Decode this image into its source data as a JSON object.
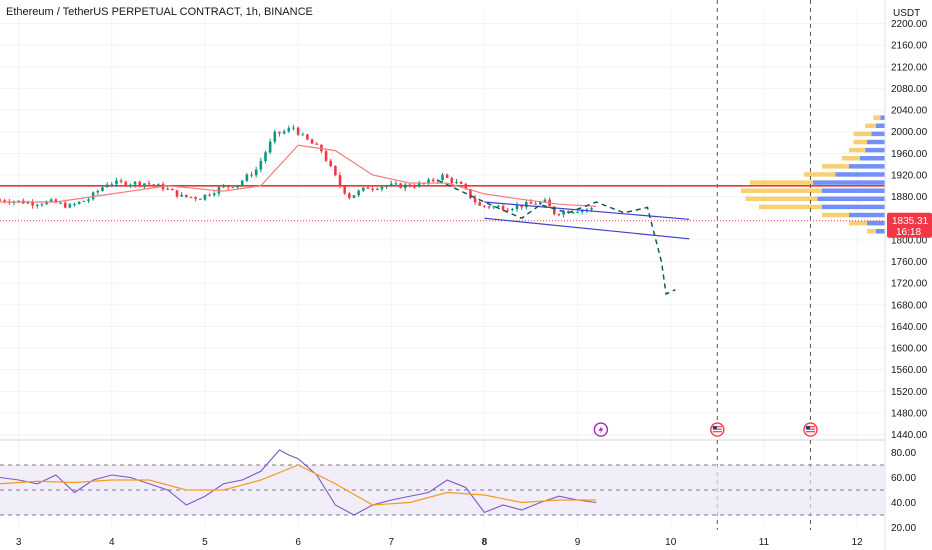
{
  "header": {
    "title": "Ethereum / TetherUS PERPETUAL CONTRACT, 1h, BINANCE",
    "currency": "USDT"
  },
  "price_tag": {
    "price": "1835.31",
    "countdown": "16:18",
    "color": "#f23645"
  },
  "colors": {
    "up": "#089981",
    "down": "#f23645",
    "ma": "#f57c7c",
    "resistance": "#e53935",
    "channel": "#3f3fd6",
    "projection": "#0e5c55",
    "rsi": "#7e57c2",
    "rsi_ma": "#f59c1a",
    "rsi_band": "#ede7f6",
    "vp_buy": "#5b7cf5",
    "vp_sell": "#f7c85a",
    "grid": "#f0f3fa"
  },
  "icons": [
    "lightning-event-icon",
    "us-flag-event-icon",
    "us-flag-event-icon"
  ],
  "chart_data": [
    {
      "type": "candlestick",
      "symbol": "Ethereum / TetherUS PERPETUAL CONTRACT",
      "interval": "1h",
      "exchange": "BINANCE",
      "y_axis": {
        "unit": "USDT",
        "ticks": [
          "2200.00",
          "2160.00",
          "2120.00",
          "2080.00",
          "2040.00",
          "2000.00",
          "1960.00",
          "1920.00",
          "1880.00",
          "1800.00",
          "1760.00",
          "1720.00",
          "1680.00",
          "1640.00",
          "1600.00",
          "1560.00",
          "1520.00",
          "1480.00",
          "1440.00"
        ],
        "range": [
          1430,
          2225
        ]
      },
      "x_axis": {
        "ticks": [
          "3",
          "4",
          "5",
          "6",
          "7",
          "8",
          "9",
          "10",
          "11",
          "12"
        ],
        "range": [
          2.8,
          12.3
        ]
      },
      "close_series": {
        "x": [
          2.8,
          3.0,
          3.2,
          3.4,
          3.6,
          3.8,
          4.0,
          4.2,
          4.4,
          4.6,
          4.8,
          5.0,
          5.2,
          5.4,
          5.6,
          5.8,
          5.9,
          6.0,
          6.1,
          6.3,
          6.5,
          6.6,
          6.8,
          7.0,
          7.2,
          7.4,
          7.6,
          7.8,
          7.9,
          8.0,
          8.1,
          8.3,
          8.5,
          8.7,
          8.8,
          9.0,
          9.2
        ],
        "y": [
          1874,
          1872,
          1868,
          1870,
          1862,
          1876,
          1905,
          1905,
          1905,
          1897,
          1880,
          1878,
          1895,
          1903,
          1930,
          1995,
          2000,
          2008,
          1990,
          1965,
          1900,
          1880,
          1897,
          1900,
          1900,
          1903,
          1918,
          1900,
          1880,
          1862,
          1862,
          1860,
          1865,
          1870,
          1850,
          1855,
          1857
        ]
      },
      "ma_series": {
        "x": [
          2.8,
          3.4,
          4.0,
          4.6,
          5.2,
          5.6,
          6.0,
          6.4,
          6.8,
          7.2,
          7.6,
          8.0,
          8.4,
          8.8,
          9.2
        ],
        "y": [
          1870,
          1870,
          1885,
          1900,
          1890,
          1900,
          1975,
          1965,
          1920,
          1905,
          1905,
          1885,
          1875,
          1866,
          1862
        ]
      },
      "annotations": {
        "resistance_level": 1900,
        "current_price": 1835.31,
        "channel_upper": {
          "x": [
            8.0,
            10.2
          ],
          "y": [
            1870,
            1838
          ]
        },
        "channel_lower": {
          "x": [
            8.0,
            10.2
          ],
          "y": [
            1840,
            1802
          ]
        },
        "projection_path": {
          "x": [
            7.5,
            8.0,
            8.4,
            8.6,
            8.9,
            9.2,
            9.5,
            9.75,
            9.9,
            9.95,
            10.05
          ],
          "y": [
            1910,
            1870,
            1840,
            1865,
            1850,
            1870,
            1850,
            1860,
            1760,
            1700,
            1708
          ]
        },
        "event_lines_x": [
          10.5,
          11.5
        ],
        "event_markers": [
          {
            "x": 9.25,
            "y": 1440,
            "icon": "lightning-event-icon"
          },
          {
            "x": 10.5,
            "y": 1440,
            "icon": "us-flag-event-icon"
          },
          {
            "x": 11.5,
            "y": 1440,
            "icon": "us-flag-event-icon"
          }
        ]
      },
      "volume_profile": {
        "levels": [
          2025,
          2010,
          1995,
          1980,
          1965,
          1950,
          1935,
          1920,
          1905,
          1890,
          1875,
          1860,
          1845,
          1830,
          1815
        ],
        "buy": [
          0.05,
          0.1,
          0.15,
          0.2,
          0.22,
          0.28,
          0.4,
          0.55,
          0.8,
          0.7,
          0.75,
          0.7,
          0.4,
          0.2,
          0.1
        ],
        "sell": [
          0.08,
          0.12,
          0.2,
          0.15,
          0.18,
          0.2,
          0.3,
          0.35,
          0.7,
          0.9,
          0.8,
          0.7,
          0.3,
          0.2,
          0.1
        ]
      }
    },
    {
      "type": "line",
      "name": "RSI",
      "y_axis": {
        "ticks": [
          "80.00",
          "60.00",
          "40.00",
          "20.00"
        ],
        "range": [
          18,
          90
        ]
      },
      "bands": {
        "upper": 70,
        "middle": 50,
        "lower": 30
      },
      "rsi_series": {
        "x": [
          2.8,
          3.0,
          3.2,
          3.4,
          3.6,
          3.8,
          4.0,
          4.2,
          4.4,
          4.6,
          4.8,
          5.0,
          5.2,
          5.4,
          5.6,
          5.8,
          5.9,
          6.0,
          6.2,
          6.4,
          6.6,
          6.8,
          7.0,
          7.2,
          7.4,
          7.6,
          7.8,
          8.0,
          8.2,
          8.4,
          8.6,
          8.8,
          9.0,
          9.2
        ],
        "y": [
          60,
          58,
          55,
          62,
          48,
          58,
          62,
          60,
          55,
          50,
          38,
          45,
          55,
          58,
          65,
          82,
          78,
          75,
          62,
          38,
          30,
          38,
          42,
          45,
          48,
          58,
          52,
          32,
          38,
          34,
          40,
          45,
          42,
          40
        ]
      },
      "ma_series": {
        "x": [
          2.8,
          3.2,
          3.6,
          4.0,
          4.4,
          4.8,
          5.2,
          5.6,
          6.0,
          6.4,
          6.8,
          7.2,
          7.6,
          8.0,
          8.4,
          8.8,
          9.2
        ],
        "y": [
          55,
          57,
          56,
          58,
          58,
          50,
          50,
          58,
          70,
          55,
          38,
          40,
          48,
          46,
          40,
          42,
          42
        ]
      }
    }
  ]
}
